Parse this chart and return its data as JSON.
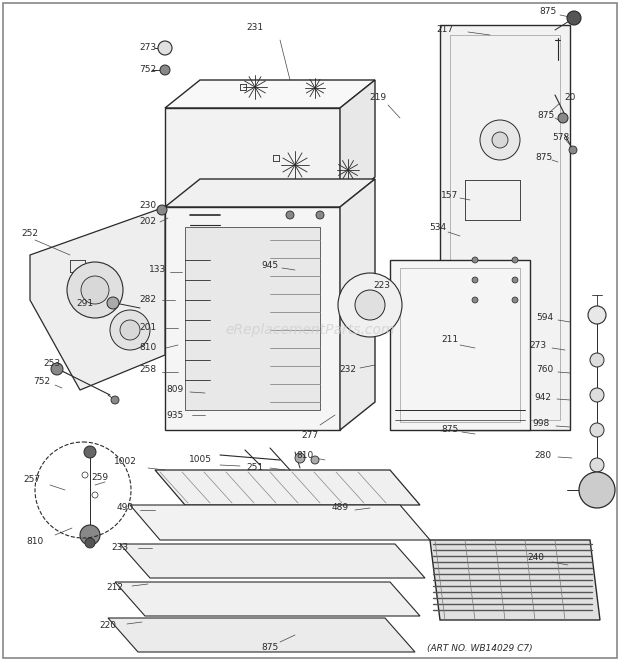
{
  "art_no": "(ART NO. WB14029 C7)",
  "watermark": "eReplacementParts.com",
  "bg_color": "#ffffff",
  "fig_width": 6.2,
  "fig_height": 6.61,
  "dpi": 100,
  "dc": "#2a2a2a",
  "lc": "#aaaaaa"
}
